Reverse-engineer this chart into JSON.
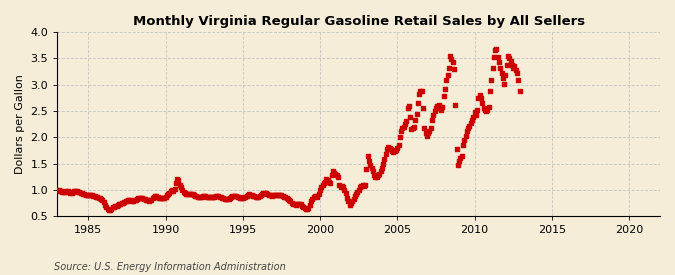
{
  "title": "Monthly Virginia Regular Gasoline Retail Sales by All Sellers",
  "ylabel": "Dollars per Gallon",
  "source": "Source: U.S. Energy Information Administration",
  "xlim": [
    1983,
    2022
  ],
  "ylim": [
    0.5,
    4.0
  ],
  "yticks": [
    0.5,
    1.0,
    1.5,
    2.0,
    2.5,
    3.0,
    3.5,
    4.0
  ],
  "xticks": [
    1985,
    1990,
    1995,
    2000,
    2005,
    2010,
    2015,
    2020
  ],
  "line_color": "#cc0000",
  "bg_color": "#f5edd8",
  "grid_color": "#bbbbbb",
  "marker": "s",
  "markersize": 2.2,
  "data": [
    [
      1983.0,
      1.0
    ],
    [
      1983.083,
      1.0
    ],
    [
      1983.167,
      0.98
    ],
    [
      1983.25,
      0.97
    ],
    [
      1983.333,
      0.96
    ],
    [
      1983.417,
      0.96
    ],
    [
      1983.5,
      0.96
    ],
    [
      1983.583,
      0.97
    ],
    [
      1983.667,
      0.97
    ],
    [
      1983.75,
      0.96
    ],
    [
      1983.833,
      0.95
    ],
    [
      1983.917,
      0.95
    ],
    [
      1984.0,
      0.96
    ],
    [
      1984.083,
      0.97
    ],
    [
      1984.167,
      0.97
    ],
    [
      1984.25,
      0.97
    ],
    [
      1984.333,
      0.96
    ],
    [
      1984.417,
      0.96
    ],
    [
      1984.5,
      0.95
    ],
    [
      1984.583,
      0.94
    ],
    [
      1984.667,
      0.93
    ],
    [
      1984.75,
      0.92
    ],
    [
      1984.833,
      0.91
    ],
    [
      1984.917,
      0.91
    ],
    [
      1985.0,
      0.91
    ],
    [
      1985.083,
      0.91
    ],
    [
      1985.167,
      0.91
    ],
    [
      1985.25,
      0.9
    ],
    [
      1985.333,
      0.89
    ],
    [
      1985.417,
      0.88
    ],
    [
      1985.5,
      0.87
    ],
    [
      1985.583,
      0.86
    ],
    [
      1985.667,
      0.85
    ],
    [
      1985.75,
      0.84
    ],
    [
      1985.833,
      0.82
    ],
    [
      1985.917,
      0.8
    ],
    [
      1986.0,
      0.77
    ],
    [
      1986.083,
      0.72
    ],
    [
      1986.167,
      0.67
    ],
    [
      1986.25,
      0.63
    ],
    [
      1986.333,
      0.61
    ],
    [
      1986.417,
      0.62
    ],
    [
      1986.5,
      0.64
    ],
    [
      1986.583,
      0.67
    ],
    [
      1986.667,
      0.68
    ],
    [
      1986.75,
      0.69
    ],
    [
      1986.833,
      0.7
    ],
    [
      1986.917,
      0.72
    ],
    [
      1987.0,
      0.73
    ],
    [
      1987.083,
      0.74
    ],
    [
      1987.167,
      0.75
    ],
    [
      1987.25,
      0.76
    ],
    [
      1987.333,
      0.77
    ],
    [
      1987.417,
      0.78
    ],
    [
      1987.5,
      0.79
    ],
    [
      1987.583,
      0.8
    ],
    [
      1987.667,
      0.8
    ],
    [
      1987.75,
      0.8
    ],
    [
      1987.833,
      0.79
    ],
    [
      1987.917,
      0.79
    ],
    [
      1988.0,
      0.8
    ],
    [
      1988.083,
      0.81
    ],
    [
      1988.167,
      0.82
    ],
    [
      1988.25,
      0.84
    ],
    [
      1988.333,
      0.85
    ],
    [
      1988.417,
      0.85
    ],
    [
      1988.5,
      0.84
    ],
    [
      1988.583,
      0.83
    ],
    [
      1988.667,
      0.82
    ],
    [
      1988.75,
      0.81
    ],
    [
      1988.833,
      0.8
    ],
    [
      1988.917,
      0.79
    ],
    [
      1989.0,
      0.8
    ],
    [
      1989.083,
      0.81
    ],
    [
      1989.167,
      0.84
    ],
    [
      1989.25,
      0.86
    ],
    [
      1989.333,
      0.88
    ],
    [
      1989.417,
      0.88
    ],
    [
      1989.5,
      0.87
    ],
    [
      1989.583,
      0.85
    ],
    [
      1989.667,
      0.85
    ],
    [
      1989.75,
      0.85
    ],
    [
      1989.833,
      0.84
    ],
    [
      1989.917,
      0.84
    ],
    [
      1990.0,
      0.87
    ],
    [
      1990.083,
      0.9
    ],
    [
      1990.167,
      0.92
    ],
    [
      1990.25,
      0.95
    ],
    [
      1990.333,
      0.98
    ],
    [
      1990.417,
      0.99
    ],
    [
      1990.5,
      0.98
    ],
    [
      1990.583,
      1.01
    ],
    [
      1990.667,
      1.13
    ],
    [
      1990.75,
      1.2
    ],
    [
      1990.833,
      1.18
    ],
    [
      1990.917,
      1.1
    ],
    [
      1991.0,
      1.05
    ],
    [
      1991.083,
      1.0
    ],
    [
      1991.167,
      0.96
    ],
    [
      1991.25,
      0.94
    ],
    [
      1991.333,
      0.93
    ],
    [
      1991.417,
      0.93
    ],
    [
      1991.5,
      0.93
    ],
    [
      1991.583,
      0.93
    ],
    [
      1991.667,
      0.93
    ],
    [
      1991.75,
      0.92
    ],
    [
      1991.833,
      0.9
    ],
    [
      1991.917,
      0.89
    ],
    [
      1992.0,
      0.88
    ],
    [
      1992.083,
      0.87
    ],
    [
      1992.167,
      0.87
    ],
    [
      1992.25,
      0.87
    ],
    [
      1992.333,
      0.87
    ],
    [
      1992.417,
      0.88
    ],
    [
      1992.5,
      0.88
    ],
    [
      1992.583,
      0.88
    ],
    [
      1992.667,
      0.87
    ],
    [
      1992.75,
      0.87
    ],
    [
      1992.833,
      0.86
    ],
    [
      1992.917,
      0.86
    ],
    [
      1993.0,
      0.86
    ],
    [
      1993.083,
      0.86
    ],
    [
      1993.167,
      0.87
    ],
    [
      1993.25,
      0.88
    ],
    [
      1993.333,
      0.88
    ],
    [
      1993.417,
      0.88
    ],
    [
      1993.5,
      0.87
    ],
    [
      1993.583,
      0.86
    ],
    [
      1993.667,
      0.85
    ],
    [
      1993.75,
      0.84
    ],
    [
      1993.833,
      0.83
    ],
    [
      1993.917,
      0.82
    ],
    [
      1994.0,
      0.83
    ],
    [
      1994.083,
      0.83
    ],
    [
      1994.167,
      0.84
    ],
    [
      1994.25,
      0.86
    ],
    [
      1994.333,
      0.88
    ],
    [
      1994.417,
      0.89
    ],
    [
      1994.5,
      0.89
    ],
    [
      1994.583,
      0.88
    ],
    [
      1994.667,
      0.87
    ],
    [
      1994.75,
      0.86
    ],
    [
      1994.833,
      0.85
    ],
    [
      1994.917,
      0.84
    ],
    [
      1995.0,
      0.85
    ],
    [
      1995.083,
      0.86
    ],
    [
      1995.167,
      0.87
    ],
    [
      1995.25,
      0.89
    ],
    [
      1995.333,
      0.91
    ],
    [
      1995.417,
      0.92
    ],
    [
      1995.5,
      0.91
    ],
    [
      1995.583,
      0.9
    ],
    [
      1995.667,
      0.89
    ],
    [
      1995.75,
      0.88
    ],
    [
      1995.833,
      0.87
    ],
    [
      1995.917,
      0.86
    ],
    [
      1996.0,
      0.87
    ],
    [
      1996.083,
      0.88
    ],
    [
      1996.167,
      0.9
    ],
    [
      1996.25,
      0.93
    ],
    [
      1996.333,
      0.95
    ],
    [
      1996.417,
      0.95
    ],
    [
      1996.5,
      0.94
    ],
    [
      1996.583,
      0.92
    ],
    [
      1996.667,
      0.91
    ],
    [
      1996.75,
      0.91
    ],
    [
      1996.833,
      0.9
    ],
    [
      1996.917,
      0.89
    ],
    [
      1997.0,
      0.9
    ],
    [
      1997.083,
      0.9
    ],
    [
      1997.167,
      0.9
    ],
    [
      1997.25,
      0.91
    ],
    [
      1997.333,
      0.91
    ],
    [
      1997.417,
      0.91
    ],
    [
      1997.5,
      0.9
    ],
    [
      1997.583,
      0.88
    ],
    [
      1997.667,
      0.87
    ],
    [
      1997.75,
      0.86
    ],
    [
      1997.833,
      0.84
    ],
    [
      1997.917,
      0.82
    ],
    [
      1998.0,
      0.8
    ],
    [
      1998.083,
      0.78
    ],
    [
      1998.167,
      0.76
    ],
    [
      1998.25,
      0.74
    ],
    [
      1998.333,
      0.73
    ],
    [
      1998.417,
      0.72
    ],
    [
      1998.5,
      0.73
    ],
    [
      1998.583,
      0.74
    ],
    [
      1998.667,
      0.74
    ],
    [
      1998.75,
      0.73
    ],
    [
      1998.833,
      0.7
    ],
    [
      1998.917,
      0.68
    ],
    [
      1999.0,
      0.66
    ],
    [
      1999.083,
      0.64
    ],
    [
      1999.167,
      0.63
    ],
    [
      1999.25,
      0.65
    ],
    [
      1999.333,
      0.72
    ],
    [
      1999.417,
      0.78
    ],
    [
      1999.5,
      0.83
    ],
    [
      1999.583,
      0.87
    ],
    [
      1999.667,
      0.88
    ],
    [
      1999.75,
      0.88
    ],
    [
      1999.833,
      0.87
    ],
    [
      1999.917,
      0.92
    ],
    [
      2000.0,
      1.0
    ],
    [
      2000.083,
      1.05
    ],
    [
      2000.167,
      1.1
    ],
    [
      2000.25,
      1.13
    ],
    [
      2000.333,
      1.15
    ],
    [
      2000.417,
      1.2
    ],
    [
      2000.5,
      1.18
    ],
    [
      2000.583,
      1.15
    ],
    [
      2000.667,
      1.13
    ],
    [
      2000.75,
      1.28
    ],
    [
      2000.833,
      1.35
    ],
    [
      2000.917,
      1.33
    ],
    [
      2001.0,
      1.3
    ],
    [
      2001.083,
      1.28
    ],
    [
      2001.167,
      1.25
    ],
    [
      2001.25,
      1.1
    ],
    [
      2001.333,
      1.05
    ],
    [
      2001.417,
      1.08
    ],
    [
      2001.5,
      1.05
    ],
    [
      2001.583,
      1.0
    ],
    [
      2001.667,
      0.95
    ],
    [
      2001.75,
      0.85
    ],
    [
      2001.833,
      0.78
    ],
    [
      2001.917,
      0.72
    ],
    [
      2002.0,
      0.75
    ],
    [
      2002.083,
      0.78
    ],
    [
      2002.167,
      0.82
    ],
    [
      2002.25,
      0.88
    ],
    [
      2002.333,
      0.92
    ],
    [
      2002.417,
      0.96
    ],
    [
      2002.5,
      1.0
    ],
    [
      2002.583,
      1.05
    ],
    [
      2002.667,
      1.08
    ],
    [
      2002.75,
      1.1
    ],
    [
      2002.833,
      1.08
    ],
    [
      2002.917,
      1.1
    ],
    [
      2003.0,
      1.4
    ],
    [
      2003.083,
      1.65
    ],
    [
      2003.167,
      1.55
    ],
    [
      2003.25,
      1.48
    ],
    [
      2003.333,
      1.42
    ],
    [
      2003.417,
      1.35
    ],
    [
      2003.5,
      1.28
    ],
    [
      2003.583,
      1.25
    ],
    [
      2003.667,
      1.25
    ],
    [
      2003.75,
      1.28
    ],
    [
      2003.833,
      1.3
    ],
    [
      2003.917,
      1.35
    ],
    [
      2004.0,
      1.42
    ],
    [
      2004.083,
      1.5
    ],
    [
      2004.167,
      1.58
    ],
    [
      2004.25,
      1.68
    ],
    [
      2004.333,
      1.78
    ],
    [
      2004.417,
      1.82
    ],
    [
      2004.5,
      1.8
    ],
    [
      2004.583,
      1.78
    ],
    [
      2004.667,
      1.74
    ],
    [
      2004.75,
      1.72
    ],
    [
      2004.833,
      1.74
    ],
    [
      2004.917,
      1.76
    ],
    [
      2005.0,
      1.8
    ],
    [
      2005.083,
      1.85
    ],
    [
      2005.167,
      2.0
    ],
    [
      2005.25,
      2.12
    ],
    [
      2005.333,
      2.18
    ],
    [
      2005.417,
      2.2
    ],
    [
      2005.5,
      2.25
    ],
    [
      2005.583,
      2.3
    ],
    [
      2005.667,
      2.55
    ],
    [
      2005.75,
      2.6
    ],
    [
      2005.833,
      2.38
    ],
    [
      2005.917,
      2.15
    ],
    [
      2006.0,
      2.18
    ],
    [
      2006.083,
      2.2
    ],
    [
      2006.167,
      2.32
    ],
    [
      2006.25,
      2.45
    ],
    [
      2006.333,
      2.65
    ],
    [
      2006.417,
      2.82
    ],
    [
      2006.5,
      2.88
    ],
    [
      2006.583,
      2.88
    ],
    [
      2006.667,
      2.55
    ],
    [
      2006.75,
      2.18
    ],
    [
      2006.833,
      2.08
    ],
    [
      2006.917,
      2.02
    ],
    [
      2007.0,
      2.08
    ],
    [
      2007.083,
      2.12
    ],
    [
      2007.167,
      2.18
    ],
    [
      2007.25,
      2.32
    ],
    [
      2007.333,
      2.42
    ],
    [
      2007.417,
      2.5
    ],
    [
      2007.5,
      2.55
    ],
    [
      2007.583,
      2.6
    ],
    [
      2007.667,
      2.62
    ],
    [
      2007.75,
      2.58
    ],
    [
      2007.833,
      2.52
    ],
    [
      2007.917,
      2.58
    ],
    [
      2008.0,
      2.78
    ],
    [
      2008.083,
      2.92
    ],
    [
      2008.167,
      3.08
    ],
    [
      2008.25,
      3.18
    ],
    [
      2008.333,
      3.32
    ],
    [
      2008.417,
      3.55
    ],
    [
      2008.5,
      3.48
    ],
    [
      2008.583,
      3.42
    ],
    [
      2008.667,
      3.3
    ],
    [
      2008.75,
      2.62
    ],
    [
      2008.833,
      1.78
    ],
    [
      2008.917,
      1.48
    ],
    [
      2009.0,
      1.55
    ],
    [
      2009.083,
      1.6
    ],
    [
      2009.167,
      1.65
    ],
    [
      2009.25,
      1.85
    ],
    [
      2009.333,
      1.95
    ],
    [
      2009.417,
      2.02
    ],
    [
      2009.5,
      2.12
    ],
    [
      2009.583,
      2.18
    ],
    [
      2009.667,
      2.22
    ],
    [
      2009.75,
      2.28
    ],
    [
      2009.833,
      2.32
    ],
    [
      2009.917,
      2.38
    ],
    [
      2010.0,
      2.48
    ],
    [
      2010.083,
      2.42
    ],
    [
      2010.167,
      2.52
    ],
    [
      2010.25,
      2.75
    ],
    [
      2010.333,
      2.8
    ],
    [
      2010.417,
      2.75
    ],
    [
      2010.5,
      2.65
    ],
    [
      2010.583,
      2.55
    ],
    [
      2010.667,
      2.52
    ],
    [
      2010.75,
      2.5
    ],
    [
      2010.833,
      2.52
    ],
    [
      2010.917,
      2.58
    ],
    [
      2011.0,
      2.88
    ],
    [
      2011.083,
      3.08
    ],
    [
      2011.167,
      3.32
    ],
    [
      2011.25,
      3.52
    ],
    [
      2011.333,
      3.65
    ],
    [
      2011.417,
      3.68
    ],
    [
      2011.5,
      3.52
    ],
    [
      2011.583,
      3.42
    ],
    [
      2011.667,
      3.32
    ],
    [
      2011.75,
      3.22
    ],
    [
      2011.833,
      3.12
    ],
    [
      2011.917,
      3.02
    ],
    [
      2012.0,
      3.18
    ],
    [
      2012.083,
      3.38
    ],
    [
      2012.167,
      3.55
    ],
    [
      2012.25,
      3.5
    ],
    [
      2012.333,
      3.45
    ],
    [
      2012.417,
      3.38
    ],
    [
      2012.5,
      3.32
    ],
    [
      2012.583,
      3.35
    ],
    [
      2012.667,
      3.28
    ],
    [
      2012.75,
      3.22
    ],
    [
      2012.833,
      3.08
    ],
    [
      2012.917,
      2.88
    ]
  ]
}
